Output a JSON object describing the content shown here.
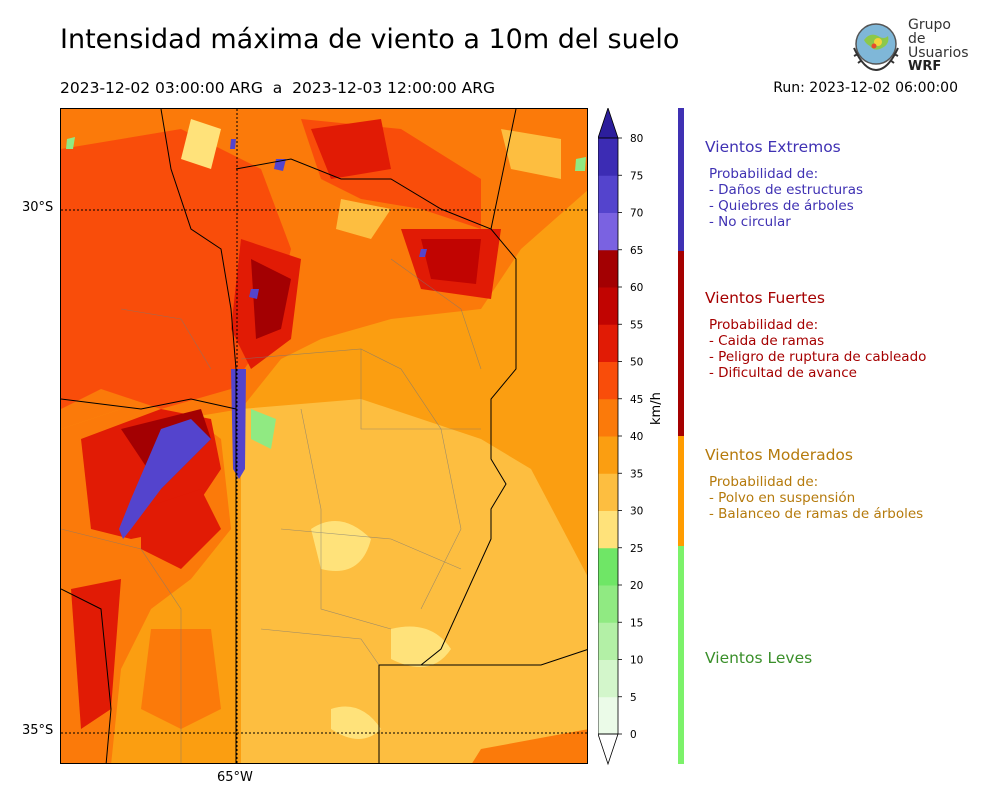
{
  "header": {
    "title": "Intensidad máxima de viento a 10m del suelo",
    "period": "2023-12-02 03:00:00 ARG  a  2023-12-03 12:00:00 ARG",
    "run": "Run: 2023-12-02 06:00:00"
  },
  "logo": {
    "line1": "Grupo de",
    "line2": "Usuarios",
    "line3": "WRF"
  },
  "map": {
    "lat_labels": [
      "30°S",
      "35°S"
    ],
    "lon_labels": [
      "65°W"
    ]
  },
  "colorbar": {
    "unit": "km/h",
    "ticks": [
      "0",
      "5",
      "10",
      "15",
      "20",
      "25",
      "30",
      "35",
      "40",
      "45",
      "50",
      "55",
      "60",
      "65",
      "70",
      "75",
      "80"
    ],
    "colors": [
      "#ebfbe8",
      "#d3f6cb",
      "#b3f0a6",
      "#90ea82",
      "#6fe666",
      "#ffe27a",
      "#fdbe40",
      "#fb9e11",
      "#fb7a0a",
      "#f94d0a",
      "#e11b05",
      "#c10401",
      "#a30002",
      "#7a62e1",
      "#5444cd",
      "#3c2cb4",
      "#2c1e9c"
    ]
  },
  "categories": [
    {
      "title": "Vientos Extremos",
      "color": "#3f31b3",
      "sub": [
        "Probabilidad de:",
        "- Daños de estructuras",
        "- Quiebres de árboles",
        "- No circular"
      ]
    },
    {
      "title": "Vientos Fuertes",
      "color": "#a50000",
      "sub": [
        "Probabilidad de:",
        "- Caida de ramas",
        "- Peligro de ruptura de cableado",
        "- Dificultad de avance"
      ]
    },
    {
      "title": "Vientos Moderados",
      "color": "#b57a0c",
      "bar_color": "#ff9c00",
      "sub": [
        "Probabilidad de:",
        "- Polvo en suspensión",
        "- Balanceo de ramas de árboles"
      ]
    },
    {
      "title": "Vientos Leves",
      "color": "#3a8f2a",
      "bar_color": "#7cf26a",
      "sub": []
    }
  ]
}
